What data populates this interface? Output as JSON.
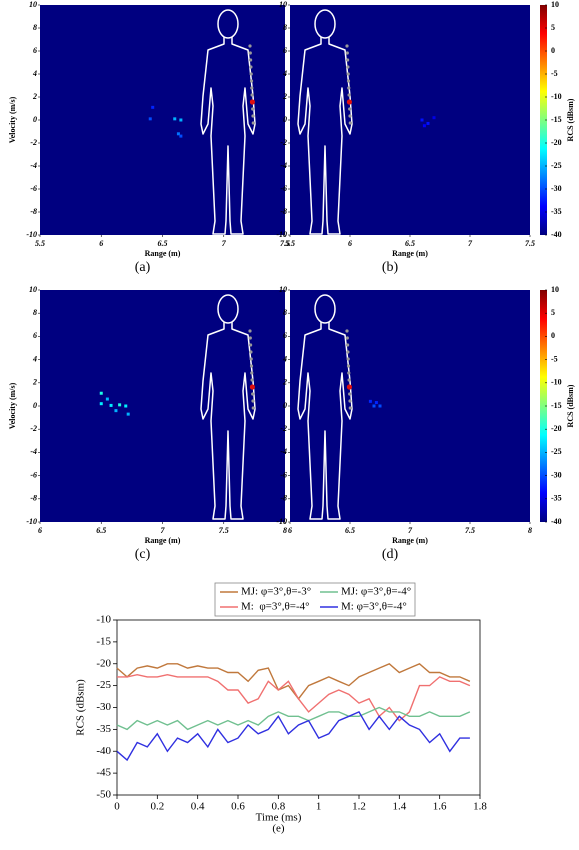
{
  "chart_data": [
    {
      "type": "heatmap",
      "panel_label": "(a)",
      "xlabel": "Range (m)",
      "ylabel": "Velocity (m/s)",
      "xlim": [
        5.5,
        7.5
      ],
      "xticks": [
        5.5,
        6,
        6.5,
        7,
        7.5
      ],
      "ylim": [
        -10,
        10
      ],
      "yticks": [
        -10,
        -8,
        -6,
        -4,
        -2,
        0,
        2,
        4,
        6,
        8,
        10
      ],
      "zlim": [
        -40,
        10
      ],
      "points": [
        {
          "x": 6.42,
          "y": 1.1,
          "value": -32
        },
        {
          "x": 6.4,
          "y": 0.1,
          "value": -30
        },
        {
          "x": 6.6,
          "y": 0.1,
          "value": -25
        },
        {
          "x": 6.65,
          "y": 0,
          "value": -25
        },
        {
          "x": 6.63,
          "y": -1.2,
          "value": -28
        },
        {
          "x": 6.65,
          "y": -1.4,
          "value": -30
        }
      ]
    },
    {
      "type": "heatmap",
      "panel_label": "(b)",
      "xlabel": "Range (m)",
      "xlim": [
        5.5,
        7.5
      ],
      "xticks": [
        5.5,
        6,
        6.5,
        7,
        7.5
      ],
      "ylim": [
        -10,
        10
      ],
      "yticks": [
        -10,
        -8,
        -6,
        -4,
        -2,
        0,
        2,
        4,
        6,
        8,
        10
      ],
      "zlim": [
        -40,
        10
      ],
      "zticks": [
        -40,
        -35,
        -30,
        -25,
        -20,
        -15,
        -10,
        -5,
        0,
        5,
        10
      ],
      "colorbar_label": "RCS (dBsm)",
      "points": [
        {
          "x": 6.6,
          "y": 0,
          "value": -33
        },
        {
          "x": 6.65,
          "y": -0.3,
          "value": -33
        },
        {
          "x": 6.7,
          "y": 0.2,
          "value": -35
        },
        {
          "x": 6.62,
          "y": -0.5,
          "value": -34
        }
      ]
    },
    {
      "type": "heatmap",
      "panel_label": "(c)",
      "xlabel": "Range (m)",
      "ylabel": "Velocity (m/s)",
      "xlim": [
        6,
        8
      ],
      "xticks": [
        6,
        6.5,
        7,
        7.5,
        8
      ],
      "ylim": [
        -10,
        10
      ],
      "yticks": [
        -10,
        -8,
        -6,
        -4,
        -2,
        0,
        2,
        4,
        6,
        8,
        10
      ],
      "zlim": [
        -40,
        10
      ],
      "points": [
        {
          "x": 6.5,
          "y": 1.1,
          "value": -20
        },
        {
          "x": 6.5,
          "y": 0.2,
          "value": -22
        },
        {
          "x": 6.55,
          "y": 0.6,
          "value": -25
        },
        {
          "x": 6.58,
          "y": 0.05,
          "value": -22
        },
        {
          "x": 6.65,
          "y": 0.1,
          "value": -20
        },
        {
          "x": 6.7,
          "y": 0,
          "value": -22
        },
        {
          "x": 6.72,
          "y": -0.7,
          "value": -25
        },
        {
          "x": 6.62,
          "y": -0.4,
          "value": -25
        }
      ]
    },
    {
      "type": "heatmap",
      "panel_label": "(d)",
      "xlabel": "Range (m)",
      "xlim": [
        6,
        8
      ],
      "xticks": [
        6,
        6.5,
        7,
        7.5,
        8
      ],
      "ylim": [
        -10,
        10
      ],
      "yticks": [
        -10,
        -8,
        -6,
        -4,
        -2,
        0,
        2,
        4,
        6,
        8,
        10
      ],
      "zlim": [
        -40,
        10
      ],
      "zticks": [
        -40,
        -35,
        -30,
        -25,
        -20,
        -15,
        -10,
        -5,
        0,
        5,
        10
      ],
      "colorbar_label": "RCS (dBsm)",
      "points": [
        {
          "x": 6.67,
          "y": 0.4,
          "value": -32
        },
        {
          "x": 6.7,
          "y": 0,
          "value": -30
        },
        {
          "x": 6.75,
          "y": 0,
          "value": -30
        },
        {
          "x": 6.72,
          "y": 0.3,
          "value": -32
        }
      ]
    },
    {
      "type": "line",
      "panel_label": "(e)",
      "xlabel": "Time (ms)",
      "ylabel": "RCS (dBsm)",
      "xlim": [
        0,
        1.8
      ],
      "xticks": [
        0,
        0.2,
        0.4,
        0.6,
        0.8,
        1,
        1.2,
        1.4,
        1.6,
        1.8
      ],
      "ylim": [
        -50,
        -10
      ],
      "yticks": [
        -10,
        -15,
        -20,
        -25,
        -30,
        -35,
        -40,
        -45,
        -50
      ],
      "x": [
        0,
        0.05,
        0.1,
        0.15,
        0.2,
        0.25,
        0.3,
        0.35,
        0.4,
        0.45,
        0.5,
        0.55,
        0.6,
        0.65,
        0.7,
        0.75,
        0.8,
        0.85,
        0.9,
        0.95,
        1,
        1.05,
        1.1,
        1.15,
        1.2,
        1.25,
        1.3,
        1.35,
        1.4,
        1.45,
        1.5,
        1.55,
        1.6,
        1.65,
        1.7,
        1.75
      ],
      "series": [
        {
          "name": "MJ: φ=3°,θ=-3°",
          "color": "#c0783c",
          "values": [
            -21,
            -23,
            -21,
            -20.5,
            -21,
            -20,
            -20,
            -21,
            -20.5,
            -21,
            -21,
            -22,
            -22,
            -24,
            -21.5,
            -21,
            -26,
            -25,
            -28,
            -25,
            -24,
            -23,
            -24,
            -25,
            -23,
            -22,
            -21,
            -20,
            -22,
            -21,
            -20,
            -22,
            -22,
            -23,
            -23,
            -24
          ]
        },
        {
          "name": "M:  φ=3°,θ=-4°",
          "color": "#f07070",
          "values": [
            -23,
            -23,
            -22.5,
            -23,
            -23,
            -22.5,
            -23,
            -23,
            -23,
            -23,
            -24,
            -26,
            -26,
            -29,
            -28,
            -24,
            -26,
            -24,
            -28,
            -31,
            -29,
            -27,
            -26,
            -27,
            -29,
            -28,
            -32,
            -30,
            -33,
            -31,
            -25,
            -25,
            -23,
            -24,
            -24,
            -25
          ]
        },
        {
          "name": "MJ: φ=3°,θ=-4°",
          "color": "#70c090",
          "values": [
            -34,
            -35,
            -33,
            -34,
            -33,
            -34,
            -33,
            -35,
            -34,
            -33,
            -34,
            -33,
            -34,
            -33,
            -34,
            -32,
            -31,
            -32,
            -32,
            -33,
            -32,
            -31,
            -31,
            -32,
            -32,
            -31,
            -30,
            -31,
            -31,
            -32,
            -32,
            -31,
            -32,
            -32,
            -32,
            -31
          ]
        },
        {
          "name": "M: φ=3°,θ=-4°",
          "color": "#3030e0",
          "values": [
            -40,
            -42,
            -38,
            -39,
            -36,
            -40,
            -37,
            -38,
            -36,
            -39,
            -35,
            -38,
            -37,
            -34,
            -36,
            -35,
            -32,
            -36,
            -34,
            -33,
            -37,
            -36,
            -33,
            -32,
            -31,
            -35,
            -32,
            -35,
            -32,
            -34,
            -35,
            -38,
            -36,
            -40,
            -37,
            -37
          ]
        }
      ]
    }
  ]
}
